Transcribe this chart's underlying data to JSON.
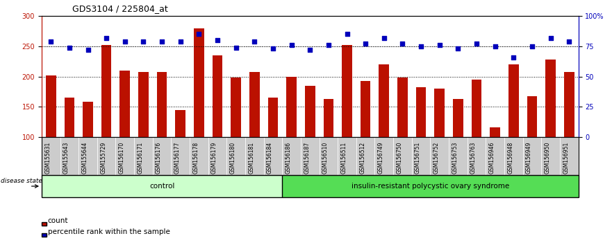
{
  "title": "GDS3104 / 225804_at",
  "samples": [
    "GSM155631",
    "GSM155643",
    "GSM155644",
    "GSM155729",
    "GSM156170",
    "GSM156171",
    "GSM156176",
    "GSM156177",
    "GSM156178",
    "GSM156179",
    "GSM156180",
    "GSM156181",
    "GSM156184",
    "GSM156186",
    "GSM156187",
    "GSM156510",
    "GSM156511",
    "GSM156512",
    "GSM156749",
    "GSM156750",
    "GSM156751",
    "GSM156752",
    "GSM156753",
    "GSM156763",
    "GSM156946",
    "GSM156948",
    "GSM156949",
    "GSM156950",
    "GSM156951"
  ],
  "bar_values": [
    202,
    165,
    158,
    252,
    210,
    207,
    207,
    145,
    280,
    235,
    198,
    207,
    165,
    200,
    185,
    163,
    252,
    193,
    220,
    198,
    183,
    180,
    163,
    195,
    116,
    220,
    168,
    228,
    208
  ],
  "dot_values": [
    79,
    74,
    72,
    82,
    79,
    79,
    79,
    79,
    85,
    80,
    74,
    79,
    73,
    76,
    72,
    76,
    85,
    77,
    82,
    77,
    75,
    76,
    73,
    77,
    75,
    66,
    75,
    82,
    79
  ],
  "n_control": 13,
  "ylim_left": [
    100,
    300
  ],
  "ylim_right": [
    0,
    100
  ],
  "yticks_left": [
    100,
    150,
    200,
    250,
    300
  ],
  "yticks_right": [
    0,
    25,
    50,
    75,
    100
  ],
  "ytick_labels_right": [
    "0",
    "25",
    "50",
    "75",
    "100%"
  ],
  "bar_color": "#bb1100",
  "dot_color": "#0000bb",
  "control_label": "control",
  "disease_label": "insulin-resistant polycystic ovary syndrome",
  "control_bg": "#ccffcc",
  "disease_bg": "#55dd55",
  "legend_count": "count",
  "legend_percentile": "percentile rank within the sample",
  "title_fontsize": 9,
  "tick_fontsize": 7,
  "sample_label_fontsize": 5.5,
  "bar_width": 0.55,
  "grid_dotted_color": "#555555",
  "xband_color": "#cccccc"
}
